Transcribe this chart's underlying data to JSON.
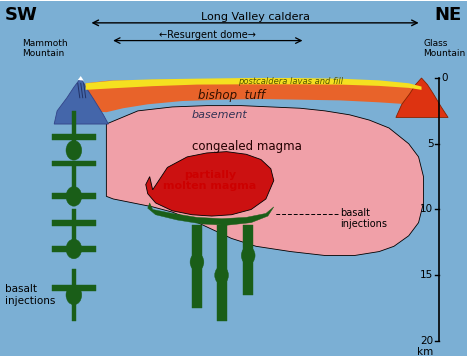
{
  "bg_color": "#7bafd4",
  "sw_label": "SW",
  "ne_label": "NE",
  "mammoth_label": "Mammoth\nMountain",
  "glass_label": "Glass\nMountain",
  "long_valley_label": "Long Valley caldera",
  "resurgent_label": "←Resurgent dome→",
  "postcaldera_label": "postcaldera lavas and fill",
  "bishop_label": "bishop  tuff",
  "basement_label": "basement",
  "congealed_label": "congealed magma",
  "partial_label": "partially\nmolten magma",
  "basalt_right_label": "basalt\ninjections",
  "basalt_left_label": "basalt\ninjections",
  "km_label": "km",
  "depth_ticks": [
    0,
    5,
    10,
    15,
    20
  ],
  "colors": {
    "yellow": "#f5e020",
    "orange": "#e8632a",
    "light_orange": "#f08050",
    "pink": "#f0a0a8",
    "red": "#cc1111",
    "dark_green": "#1a5e18",
    "blue_mountain": "#4466aa",
    "orange_mountain": "#dd3311",
    "blue_bg": "#7bafd4",
    "white": "#ffffff"
  }
}
